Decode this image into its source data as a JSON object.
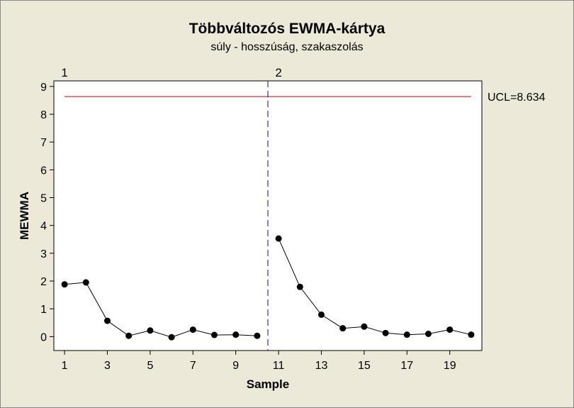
{
  "chart_data": {
    "type": "line",
    "title": "Többváltozós EWMA-kártya",
    "subtitle": "súly - hosszúság, szakaszolás",
    "xlabel": "Sample",
    "ylabel": "MEWMA",
    "xlim": [
      0.5,
      20.5
    ],
    "ylim": [
      -0.5,
      9.2
    ],
    "x_ticks": [
      1,
      3,
      5,
      7,
      9,
      11,
      13,
      15,
      17,
      19
    ],
    "y_ticks": [
      0,
      1,
      2,
      3,
      4,
      5,
      6,
      7,
      8,
      9
    ],
    "ucl": {
      "label": "UCL=8.634",
      "value": 8.634,
      "color": "#cc0000"
    },
    "stage_divider": {
      "x": 10.5,
      "color": "#0000cc"
    },
    "stage_labels": [
      {
        "label": "1",
        "x": 1
      },
      {
        "label": "2",
        "x": 11
      }
    ],
    "series": [
      {
        "stage": "1",
        "x": [
          1,
          2,
          3,
          4,
          5,
          6,
          7,
          8,
          9,
          10
        ],
        "values": [
          1.88,
          1.95,
          0.57,
          0.03,
          0.22,
          -0.02,
          0.25,
          0.06,
          0.07,
          0.03
        ]
      },
      {
        "stage": "2",
        "x": [
          11,
          12,
          13,
          14,
          15,
          16,
          17,
          18,
          19,
          20
        ],
        "values": [
          3.53,
          1.79,
          0.79,
          0.3,
          0.36,
          0.13,
          0.07,
          0.1,
          0.25,
          0.07
        ]
      }
    ],
    "colors": {
      "line": "#000000",
      "marker": "#000000",
      "plot_bg": "#ffffff"
    }
  }
}
